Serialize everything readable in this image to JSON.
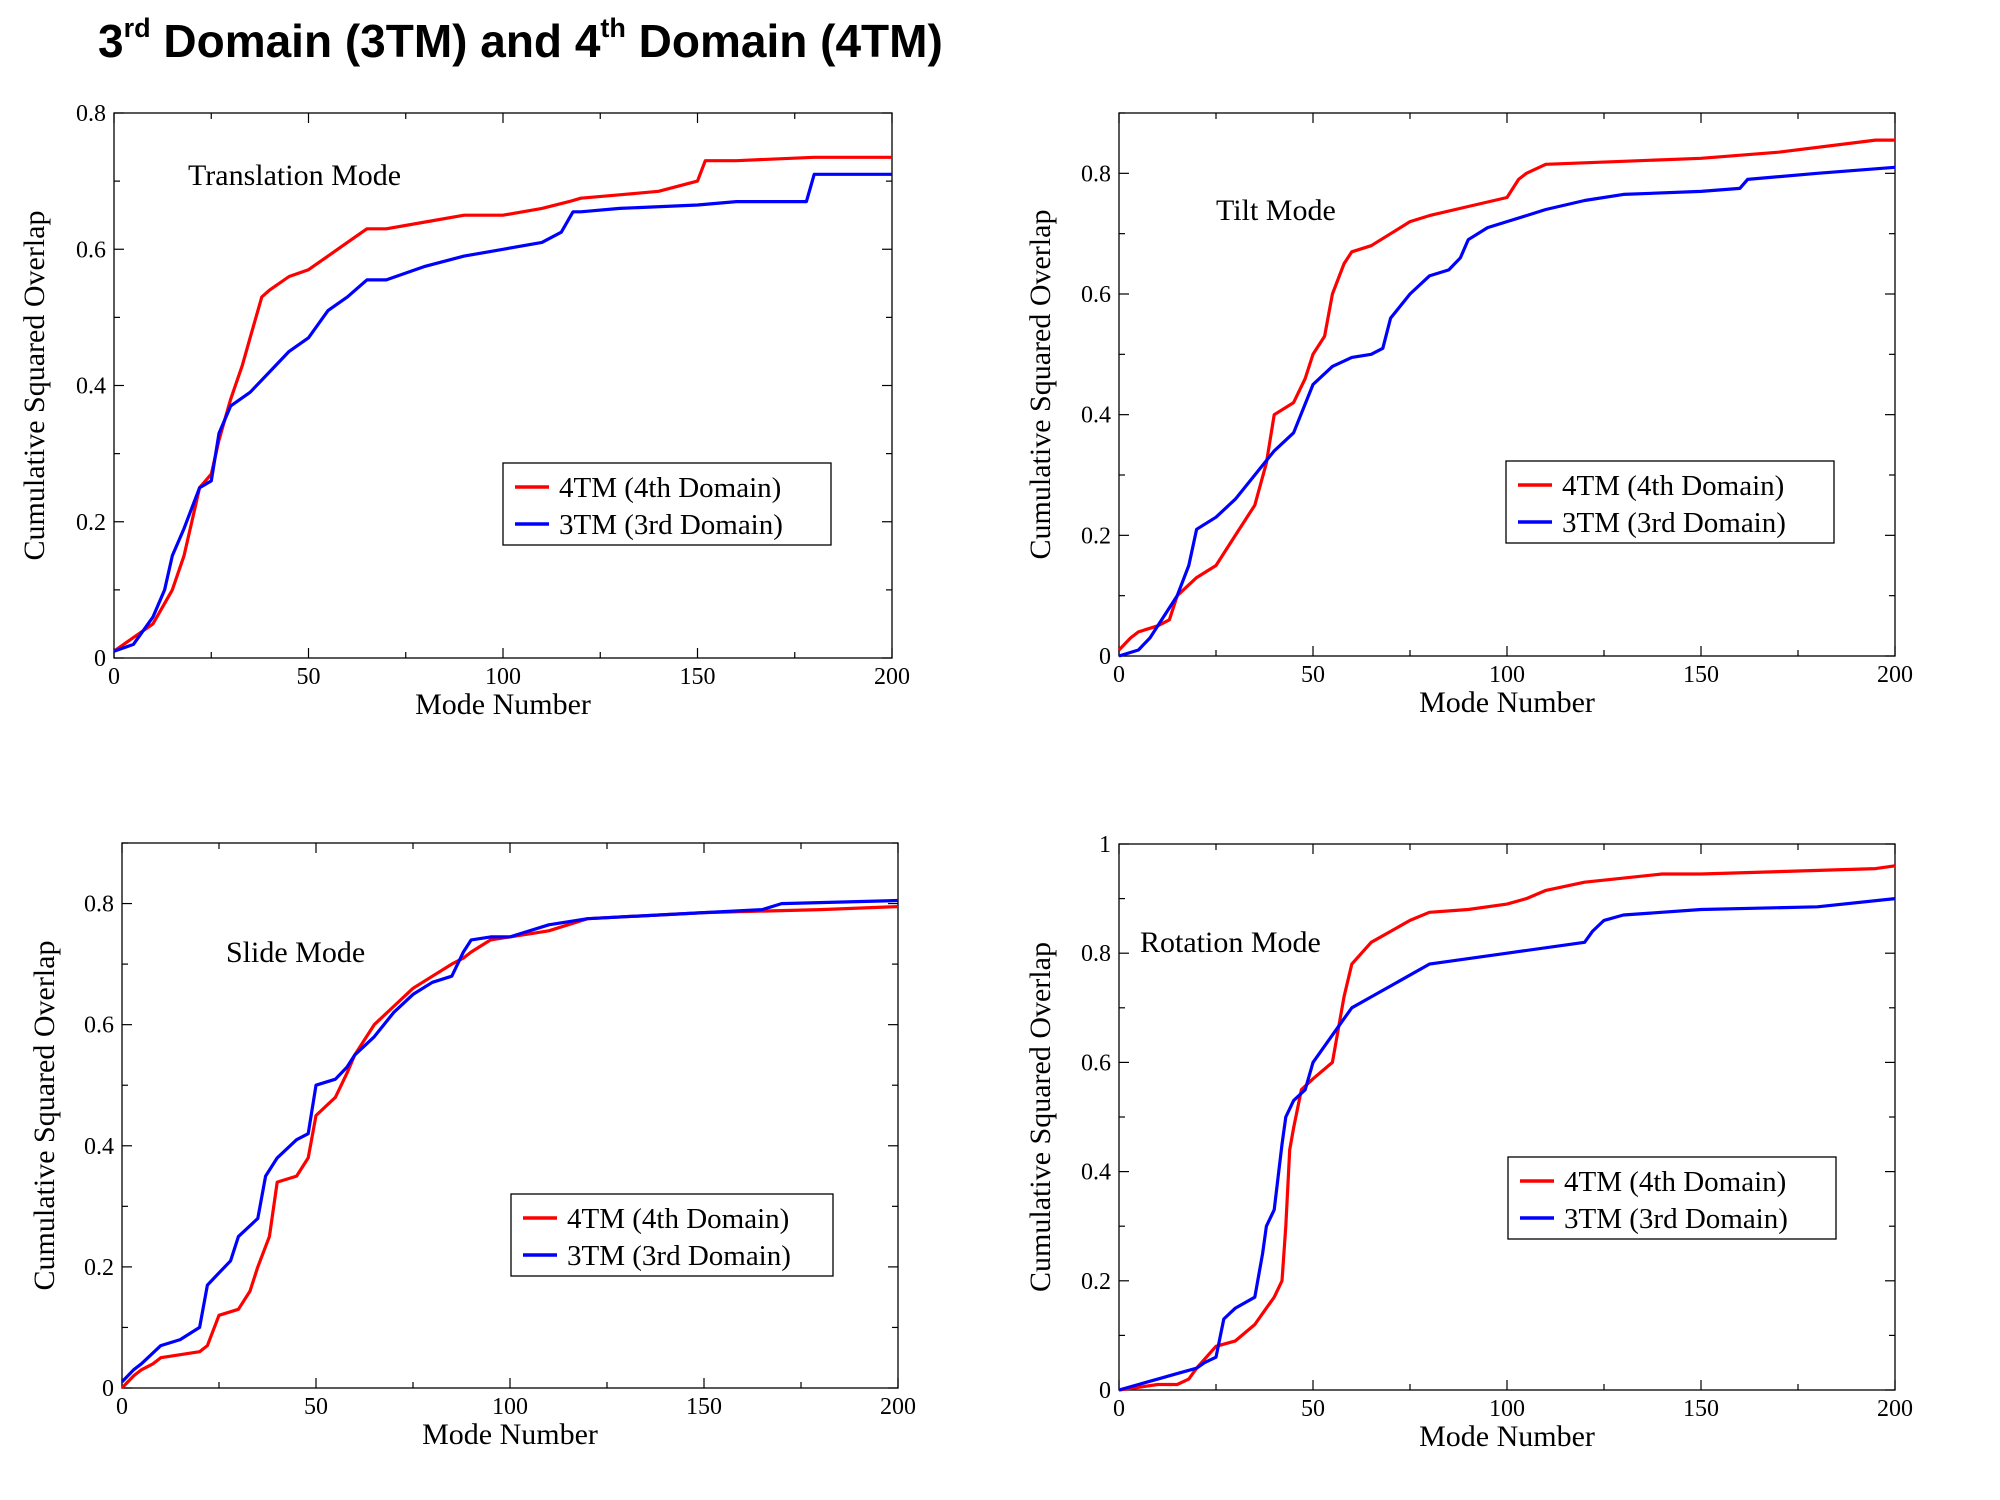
{
  "page": {
    "title_parts": {
      "a_num": "3",
      "a_sup": "rd",
      "a_rest": " Domain (3TM) and ",
      "b_num": "4",
      "b_sup": "th",
      "b_rest": " Domain (4TM)"
    }
  },
  "colors": {
    "red": "#ff0000",
    "blue": "#0000ff"
  },
  "chart_data": [
    {
      "type": "line",
      "title": "Translation Mode",
      "xlabel": "Mode Number",
      "ylabel": "Cumulative Squared Overlap",
      "xlim": [
        0,
        200
      ],
      "ylim": [
        0,
        0.8
      ],
      "xticks": [
        0,
        50,
        100,
        150,
        200
      ],
      "xtick_labels": [
        "0",
        "50",
        "100",
        "150",
        "200"
      ],
      "yticks": [
        0,
        0.2,
        0.4,
        0.6,
        0.8
      ],
      "ytick_labels": [
        "0",
        "0.2",
        "0.4",
        "0.6",
        "0.8"
      ],
      "legend_position": "center-right",
      "series": [
        {
          "name": "4TM (4th Domain)",
          "color": "#ff0000",
          "x": [
            0,
            5,
            10,
            15,
            18,
            20,
            22,
            25,
            27,
            30,
            33,
            35,
            38,
            40,
            45,
            50,
            55,
            60,
            65,
            70,
            80,
            90,
            100,
            110,
            117,
            120,
            130,
            140,
            150,
            152,
            160,
            180,
            200
          ],
          "y": [
            0.01,
            0.03,
            0.05,
            0.1,
            0.15,
            0.2,
            0.25,
            0.27,
            0.32,
            0.38,
            0.43,
            0.47,
            0.53,
            0.54,
            0.56,
            0.57,
            0.59,
            0.61,
            0.63,
            0.63,
            0.64,
            0.65,
            0.65,
            0.66,
            0.67,
            0.675,
            0.68,
            0.685,
            0.7,
            0.73,
            0.73,
            0.735,
            0.735
          ]
        },
        {
          "name": "3TM (3rd Domain)",
          "color": "#0000ff",
          "x": [
            0,
            5,
            10,
            13,
            15,
            18,
            20,
            22,
            25,
            27,
            30,
            35,
            40,
            45,
            50,
            55,
            60,
            65,
            70,
            80,
            90,
            100,
            110,
            115,
            118,
            120,
            130,
            150,
            160,
            178,
            180,
            200
          ],
          "y": [
            0.01,
            0.02,
            0.06,
            0.1,
            0.15,
            0.19,
            0.22,
            0.25,
            0.26,
            0.33,
            0.37,
            0.39,
            0.42,
            0.45,
            0.47,
            0.51,
            0.53,
            0.555,
            0.555,
            0.575,
            0.59,
            0.6,
            0.61,
            0.625,
            0.655,
            0.655,
            0.66,
            0.665,
            0.67,
            0.67,
            0.71,
            0.71
          ]
        }
      ]
    },
    {
      "type": "line",
      "title": "Tilt Mode",
      "xlabel": "Mode Number",
      "ylabel": "Cumulative Squared Overlap",
      "xlim": [
        0,
        200
      ],
      "ylim": [
        0,
        0.9
      ],
      "xticks": [
        0,
        50,
        100,
        150,
        200
      ],
      "xtick_labels": [
        "0",
        "50",
        "100",
        "150",
        "200"
      ],
      "yticks": [
        0,
        0.2,
        0.4,
        0.6,
        0.8
      ],
      "ytick_labels": [
        "0",
        "0.2",
        "0.4",
        "0.6",
        "0.8"
      ],
      "legend_position": "center-right",
      "series": [
        {
          "name": "4TM (4th Domain)",
          "color": "#ff0000",
          "x": [
            0,
            3,
            5,
            10,
            13,
            15,
            20,
            25,
            30,
            35,
            38,
            40,
            45,
            48,
            50,
            53,
            55,
            58,
            60,
            65,
            70,
            75,
            80,
            90,
            100,
            103,
            105,
            110,
            130,
            150,
            170,
            195,
            200
          ],
          "y": [
            0.01,
            0.03,
            0.04,
            0.05,
            0.06,
            0.1,
            0.13,
            0.15,
            0.2,
            0.25,
            0.32,
            0.4,
            0.42,
            0.46,
            0.5,
            0.53,
            0.6,
            0.65,
            0.67,
            0.68,
            0.7,
            0.72,
            0.73,
            0.745,
            0.76,
            0.79,
            0.8,
            0.815,
            0.82,
            0.825,
            0.835,
            0.855,
            0.855
          ]
        },
        {
          "name": "3TM (3rd Domain)",
          "color": "#0000ff",
          "x": [
            0,
            5,
            8,
            10,
            15,
            18,
            20,
            25,
            30,
            35,
            40,
            45,
            50,
            55,
            60,
            65,
            68,
            70,
            75,
            80,
            85,
            88,
            90,
            95,
            100,
            105,
            110,
            120,
            130,
            150,
            160,
            162,
            180,
            200
          ],
          "y": [
            0,
            0.01,
            0.03,
            0.05,
            0.1,
            0.15,
            0.21,
            0.23,
            0.26,
            0.3,
            0.34,
            0.37,
            0.45,
            0.48,
            0.495,
            0.5,
            0.51,
            0.56,
            0.6,
            0.63,
            0.64,
            0.66,
            0.69,
            0.71,
            0.72,
            0.73,
            0.74,
            0.755,
            0.765,
            0.77,
            0.775,
            0.79,
            0.8,
            0.81
          ]
        }
      ]
    },
    {
      "type": "line",
      "title": "Slide Mode",
      "xlabel": "Mode Number",
      "ylabel": "Cumulative Squared Overlap",
      "xlim": [
        0,
        200
      ],
      "ylim": [
        0,
        0.9
      ],
      "xticks": [
        0,
        50,
        100,
        150,
        200
      ],
      "xtick_labels": [
        "0",
        "50",
        "100",
        "150",
        "200"
      ],
      "yticks": [
        0,
        0.2,
        0.4,
        0.6,
        0.8
      ],
      "ytick_labels": [
        "0",
        "0.2",
        "0.4",
        "0.6",
        "0.8"
      ],
      "legend_position": "bottom-right",
      "series": [
        {
          "name": "4TM (4th Domain)",
          "color": "#ff0000",
          "x": [
            0,
            3,
            5,
            8,
            10,
            15,
            20,
            22,
            25,
            30,
            33,
            35,
            38,
            40,
            45,
            48,
            50,
            55,
            58,
            60,
            65,
            70,
            75,
            80,
            85,
            88,
            90,
            95,
            100,
            110,
            120,
            150,
            180,
            200
          ],
          "y": [
            0,
            0.02,
            0.03,
            0.04,
            0.05,
            0.055,
            0.06,
            0.07,
            0.12,
            0.13,
            0.16,
            0.2,
            0.25,
            0.34,
            0.35,
            0.38,
            0.45,
            0.48,
            0.52,
            0.55,
            0.6,
            0.63,
            0.66,
            0.68,
            0.7,
            0.71,
            0.72,
            0.74,
            0.745,
            0.755,
            0.775,
            0.785,
            0.79,
            0.795
          ]
        },
        {
          "name": "3TM (3rd Domain)",
          "color": "#0000ff",
          "x": [
            0,
            3,
            5,
            10,
            15,
            20,
            22,
            25,
            28,
            30,
            35,
            37,
            40,
            45,
            48,
            50,
            55,
            58,
            60,
            65,
            70,
            75,
            80,
            85,
            88,
            90,
            95,
            100,
            110,
            120,
            150,
            165,
            170,
            200
          ],
          "y": [
            0.01,
            0.03,
            0.04,
            0.07,
            0.08,
            0.1,
            0.17,
            0.19,
            0.21,
            0.25,
            0.28,
            0.35,
            0.38,
            0.41,
            0.42,
            0.5,
            0.51,
            0.53,
            0.55,
            0.58,
            0.62,
            0.65,
            0.67,
            0.68,
            0.72,
            0.74,
            0.745,
            0.745,
            0.765,
            0.775,
            0.785,
            0.79,
            0.8,
            0.805
          ]
        }
      ]
    },
    {
      "type": "line",
      "title": "Rotation Mode",
      "xlabel": "Mode Number",
      "ylabel": "Cumulative Squared Overlap",
      "xlim": [
        0,
        200
      ],
      "ylim": [
        0,
        1
      ],
      "xticks": [
        0,
        50,
        100,
        150,
        200
      ],
      "xtick_labels": [
        "0",
        "50",
        "100",
        "150",
        "200"
      ],
      "yticks": [
        0,
        0.2,
        0.4,
        0.6,
        0.8,
        1
      ],
      "ytick_labels": [
        "0",
        "0.2",
        "0.4",
        "0.6",
        "0.8",
        "1"
      ],
      "legend_position": "center-right",
      "series": [
        {
          "name": "4TM (4th Domain)",
          "color": "#ff0000",
          "x": [
            0,
            5,
            10,
            15,
            18,
            20,
            25,
            30,
            35,
            38,
            40,
            42,
            43,
            44,
            45,
            47,
            50,
            55,
            58,
            60,
            65,
            70,
            75,
            80,
            90,
            100,
            105,
            110,
            120,
            140,
            150,
            195,
            200
          ],
          "y": [
            0,
            0.005,
            0.01,
            0.01,
            0.02,
            0.04,
            0.08,
            0.09,
            0.12,
            0.15,
            0.17,
            0.2,
            0.3,
            0.44,
            0.48,
            0.55,
            0.57,
            0.6,
            0.72,
            0.78,
            0.82,
            0.84,
            0.86,
            0.875,
            0.88,
            0.89,
            0.9,
            0.915,
            0.93,
            0.945,
            0.945,
            0.955,
            0.96
          ]
        },
        {
          "name": "3TM (3rd Domain)",
          "color": "#0000ff",
          "x": [
            0,
            5,
            10,
            15,
            20,
            22,
            25,
            27,
            30,
            35,
            37,
            38,
            40,
            42,
            43,
            45,
            48,
            50,
            55,
            58,
            60,
            65,
            70,
            80,
            100,
            120,
            122,
            125,
            130,
            150,
            180,
            200
          ],
          "y": [
            0,
            0.01,
            0.02,
            0.03,
            0.04,
            0.05,
            0.06,
            0.13,
            0.15,
            0.17,
            0.25,
            0.3,
            0.33,
            0.45,
            0.5,
            0.53,
            0.55,
            0.6,
            0.65,
            0.68,
            0.7,
            0.72,
            0.74,
            0.78,
            0.8,
            0.82,
            0.84,
            0.86,
            0.87,
            0.88,
            0.885,
            0.9
          ]
        }
      ]
    }
  ]
}
